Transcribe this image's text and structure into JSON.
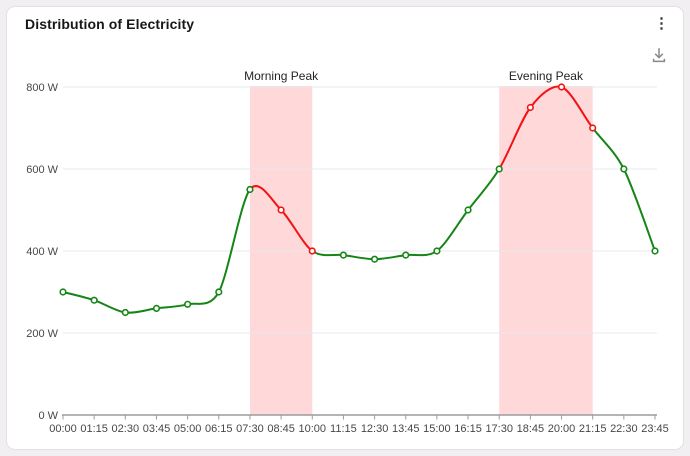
{
  "header": {
    "title": "Distribution of Electricity",
    "menu_icon": "kebab-menu-icon",
    "download_icon": "download-icon"
  },
  "chart_data": {
    "type": "line",
    "smooth": true,
    "markers": true,
    "grid": true,
    "legend": false,
    "x": [
      "00:00",
      "01:15",
      "02:30",
      "03:45",
      "05:00",
      "06:15",
      "07:30",
      "08:45",
      "10:00",
      "11:15",
      "12:30",
      "13:45",
      "15:00",
      "16:15",
      "17:30",
      "18:45",
      "20:00",
      "21:15",
      "22:30",
      "23:45"
    ],
    "values": [
      300,
      280,
      250,
      260,
      270,
      300,
      550,
      500,
      400,
      390,
      380,
      390,
      400,
      500,
      600,
      750,
      800,
      700,
      600,
      400
    ],
    "unit": "W",
    "ylim": [
      0,
      800
    ],
    "yticks": [
      0,
      200,
      400,
      600,
      800
    ],
    "ytick_labels": [
      "0 W",
      "200 W",
      "400 W",
      "600 W",
      "800 W"
    ],
    "peak_zones": [
      {
        "label": "Morning Peak",
        "from": "07:30",
        "to": "10:00",
        "from_index": 6,
        "to_index": 8
      },
      {
        "label": "Evening Peak",
        "from": "17:30",
        "to": "21:15",
        "from_index": 14,
        "to_index": 17
      }
    ],
    "colors": {
      "line_normal": "#158515",
      "line_peak": "#f31212",
      "marker_fill": "#ffffff",
      "band": "#ffd8da",
      "gridline": "#e4e8ef",
      "axis": "#9b9b9b",
      "tick_label": "#474747",
      "annotation": "#242424"
    }
  }
}
